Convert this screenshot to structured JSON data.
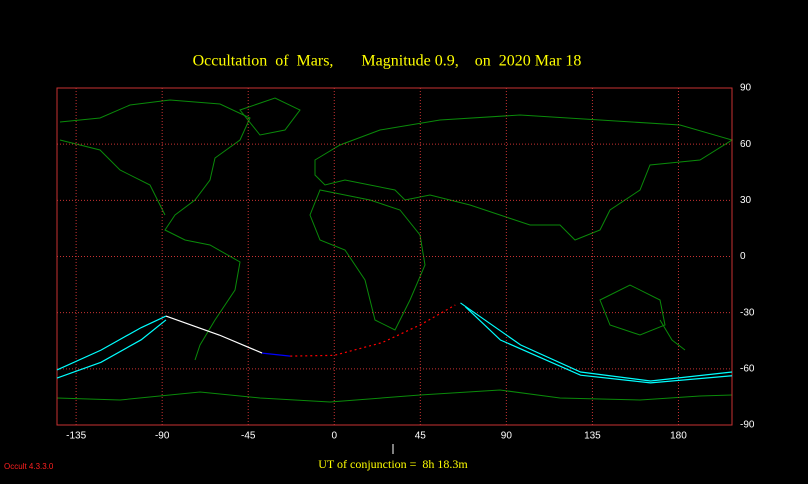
{
  "chart_data": {
    "type": "line",
    "title": "Occultation  of  Mars,       Magnitude 0.9,    on  2020 Mar 18",
    "footer": "UT of conjunction =  8h 18.3m",
    "version": "Occult 4.3.3.0",
    "xlim": [
      -145,
      208
    ],
    "ylim": [
      -90,
      90
    ],
    "xticks": [
      -135,
      -90,
      -45,
      0,
      45,
      90,
      135,
      180
    ],
    "yticks": [
      90,
      60,
      30,
      0,
      -30,
      -60,
      -90
    ],
    "grid": true,
    "series": [
      {
        "color": "#00ffff",
        "style": "solid",
        "x": [
          -145,
          -122,
          -101,
          -88
        ],
        "y": [
          -60.6,
          -50,
          -38,
          -31.8
        ]
      },
      {
        "color": "#00ffff",
        "style": "solid",
        "x": [
          -145,
          -122,
          -101,
          -88
        ],
        "y": [
          -64.9,
          -56.5,
          -44.5,
          -33.9
        ]
      },
      {
        "color": "#ffffff",
        "style": "solid",
        "x": [
          -88,
          -60,
          -37.7
        ],
        "y": [
          -31.8,
          -42,
          -51.6
        ]
      },
      {
        "color": "#0000ff",
        "style": "solid",
        "x": [
          -37.7,
          -23
        ],
        "y": [
          -51.6,
          -53.2
        ]
      },
      {
        "color": "#ff0000",
        "style": "dashed",
        "x": [
          -23,
          0,
          25,
          45,
          63.3
        ],
        "y": [
          -53.2,
          -52.8,
          -46,
          -36.5,
          -25.9
        ]
      },
      {
        "color": "#00ffff",
        "style": "solid",
        "x": [
          66,
          97.4,
          128.8,
          165.4,
          208
        ],
        "y": [
          -24.8,
          -47.2,
          -61.7,
          -66.5,
          -61.7
        ]
      },
      {
        "color": "#00ffff",
        "style": "solid",
        "x": [
          68.6,
          86.9,
          128.8,
          165.4,
          208
        ],
        "y": [
          -26.9,
          -44.6,
          -63.4,
          -67.5,
          -63.7
        ]
      }
    ]
  }
}
